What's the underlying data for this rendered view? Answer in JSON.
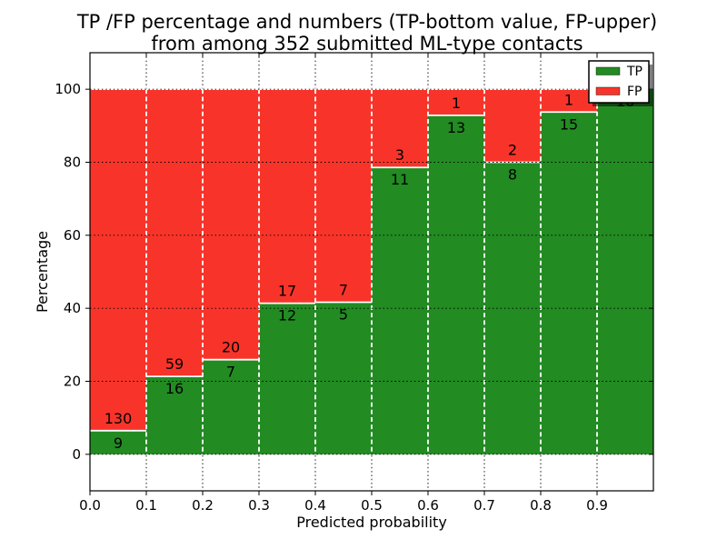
{
  "chart_data": {
    "type": "bar",
    "subtype": "stacked-percentage",
    "title_lines": [
      "TP /FP percentage and numbers (TP-bottom value, FP-upper)",
      "from among 352 submitted ML-type contacts"
    ],
    "total_shown_in_title": 352,
    "xlabel": "Predicted probability",
    "ylabel": "Percentage",
    "categories": [
      "0.0-0.1",
      "0.1-0.2",
      "0.2-0.3",
      "0.3-0.4",
      "0.4-0.5",
      "0.5-0.6",
      "0.6-0.7",
      "0.7-0.8",
      "0.8-0.9",
      "0.9-1.0"
    ],
    "series": [
      {
        "name": "TP",
        "color": "#228b22",
        "counts": [
          9,
          16,
          7,
          12,
          5,
          11,
          13,
          8,
          15,
          16
        ]
      },
      {
        "name": "FP",
        "color": "#f8342a",
        "counts": [
          130,
          59,
          20,
          17,
          7,
          3,
          1,
          2,
          1,
          0
        ]
      }
    ],
    "x_tick_labels": [
      "0.0",
      "0.1",
      "0.2",
      "0.3",
      "0.4",
      "0.5",
      "0.6",
      "0.7",
      "0.8",
      "0.9"
    ],
    "y_tick_labels": [
      "0",
      "20",
      "40",
      "60",
      "80",
      "100"
    ],
    "y_tick_values": [
      0,
      20,
      40,
      60,
      80,
      100
    ],
    "xlim": [
      0.0,
      1.0
    ],
    "ylim": [
      -10,
      110
    ],
    "grid": "dotted-black",
    "bar_edge_style": "white-dashed",
    "segment_boundary_style": "white-solid",
    "legend": {
      "position": "upper-right",
      "entries": [
        {
          "label": "TP",
          "color": "#228b22"
        },
        {
          "label": "FP",
          "color": "#f8342a"
        }
      ]
    },
    "colors": {
      "background": "#ffffff",
      "axis": "#000000",
      "grid": "#000000",
      "label_text": "#000000"
    }
  }
}
